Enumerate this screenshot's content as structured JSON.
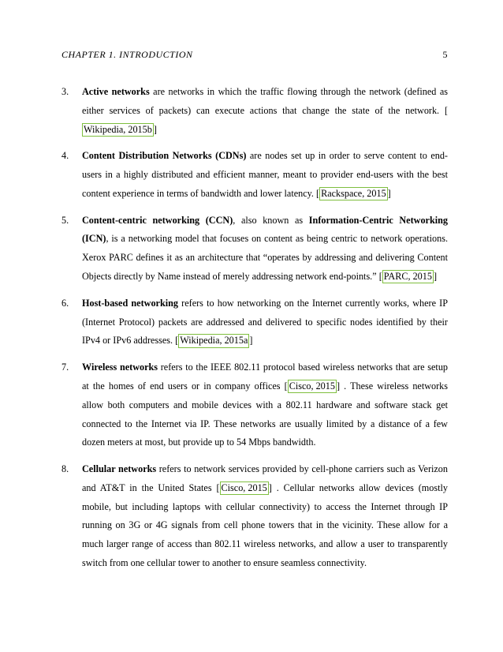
{
  "header": {
    "chapter_running_head": "CHAPTER 1.  INTRODUCTION",
    "page_number": "5"
  },
  "citation_border_color": "#7fbf3f",
  "items": [
    {
      "num": "3.",
      "term": "Active networks",
      "body_after_term": " are networks in which the traffic flowing through the network (defined as either services of packets) can execute actions that change the state of the network. ",
      "citations": [
        {
          "text": "Wikipedia, 2015b"
        }
      ],
      "tail": "",
      "extra_bold": ""
    },
    {
      "num": "4.",
      "term": "Content Distribution Networks (CDNs)",
      "body_after_term": " are nodes set up in order to serve content to end-users in a highly distributed and efficient manner, meant to provider end-users with the best content experience in terms of bandwidth and lower latency. ",
      "citations": [
        {
          "text": "Rackspace, 2015"
        }
      ],
      "tail": "",
      "extra_bold": ""
    },
    {
      "num": "5.",
      "term": "Content-centric networking (CCN)",
      "body_after_term": ", also known as ",
      "extra_bold": "Information-Centric Networking (ICN)",
      "body_after_extra": ", is a networking model that focuses on content as being centric to network operations. Xerox PARC defines it as an architecture that “operates by addressing and delivering Content Objects directly by Name instead of merely addressing network end-points.” ",
      "citations": [
        {
          "text": "PARC, 2015"
        }
      ],
      "tail": ""
    },
    {
      "num": "6.",
      "term": "Host-based networking",
      "body_after_term": " refers to how networking on the Internet currently works, where IP (Internet Protocol) packets are addressed and delivered to specific nodes identified by their IPv4 or IPv6 addresses. ",
      "citations": [
        {
          "text": "Wikipedia, 2015a"
        }
      ],
      "tail": "",
      "extra_bold": ""
    },
    {
      "num": "7.",
      "term": "Wireless networks",
      "body_after_term": " refers to the IEEE 802.11 protocol based wireless networks that are setup at the homes of end users or in company offices ",
      "citations": [
        {
          "text": "Cisco, 2015"
        }
      ],
      "tail": " . These wireless networks allow both computers and mobile devices with a 802.11 hardware and software stack get connected to the Internet via IP. These networks are usually limited by a distance of a few dozen meters at most, but provide up to 54 Mbps bandwidth.",
      "extra_bold": ""
    },
    {
      "num": "8.",
      "term": "Cellular networks",
      "body_after_term": " refers to network services provided by cell-phone carriers such as Verizon and AT&T in the United States ",
      "citations": [
        {
          "text": "Cisco, 2015"
        }
      ],
      "tail": " . Cellular networks allow devices (mostly mobile, but including laptops with cellular connectivity) to access the Internet through IP running on 3G or 4G signals from cell phone towers that in the vicinity. These allow for a much larger range of access than 802.11 wireless networks, and allow a user to transparently switch from one cellular tower to another to ensure seamless connectivity.",
      "extra_bold": ""
    }
  ]
}
